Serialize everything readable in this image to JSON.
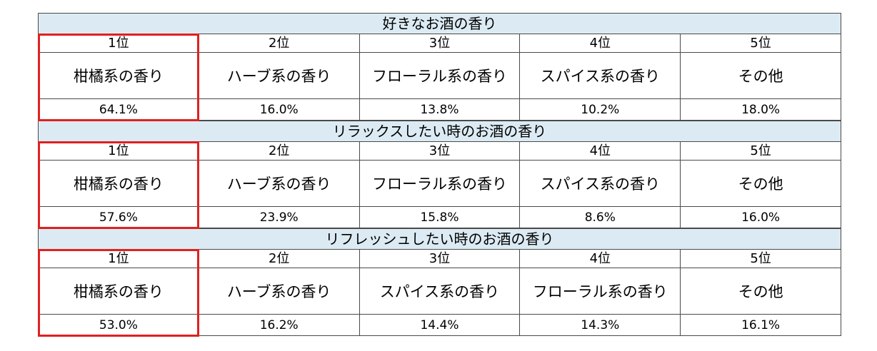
{
  "chart_data": [
    {
      "type": "table",
      "title": "好きなお酒の香り",
      "ranks": [
        "1位",
        "2位",
        "3位",
        "4位",
        "5位"
      ],
      "categories": [
        "柑橘系の香り",
        "ハーブ系の香り",
        "フローラル系の香り",
        "スパイス系の香り",
        "その他"
      ],
      "values": [
        "64.1%",
        "16.0%",
        "13.8%",
        "10.2%",
        "18.0%"
      ]
    },
    {
      "type": "table",
      "title": "リラックスしたい時のお酒の香り",
      "ranks": [
        "1位",
        "2位",
        "3位",
        "4位",
        "5位"
      ],
      "categories": [
        "柑橘系の香り",
        "ハーブ系の香り",
        "フローラル系の香り",
        "スパイス系の香り",
        "その他"
      ],
      "values": [
        "57.6%",
        "23.9%",
        "15.8%",
        "8.6%",
        "16.0%"
      ]
    },
    {
      "type": "table",
      "title": "リフレッシュしたい時のお酒の香り",
      "ranks": [
        "1位",
        "2位",
        "3位",
        "4位",
        "5位"
      ],
      "categories": [
        "柑橘系の香り",
        "ハーブ系の香り",
        "スパイス系の香り",
        "フローラル系の香り",
        "その他"
      ],
      "values": [
        "53.0%",
        "16.2%",
        "14.4%",
        "14.3%",
        "16.1%"
      ]
    }
  ],
  "colors": {
    "title_background": "#dcebf3",
    "highlight_border": "#e02020",
    "grid_line": "#4a4a4a"
  }
}
